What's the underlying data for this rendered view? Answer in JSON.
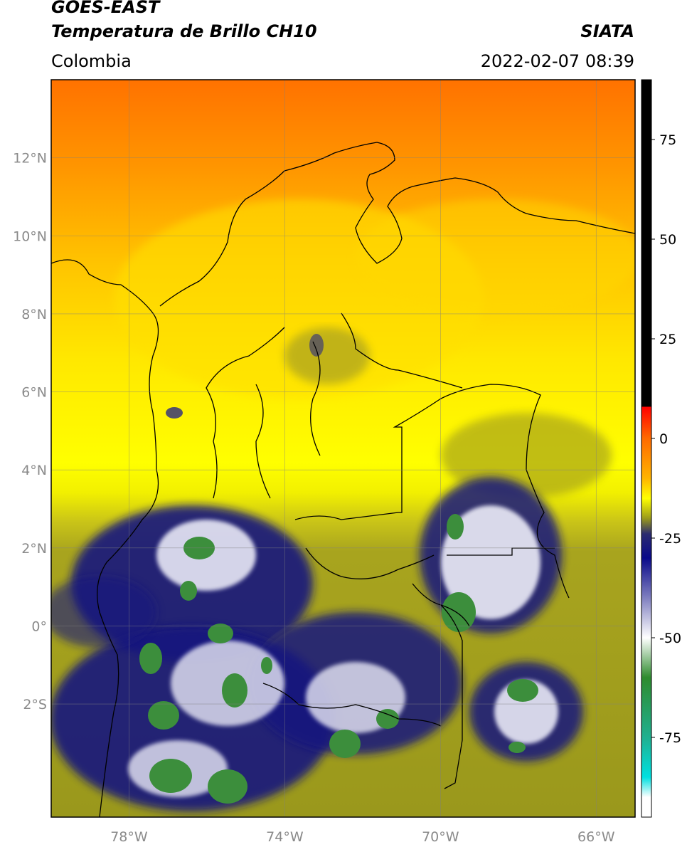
{
  "header": {
    "satellite": "GOES-EAST",
    "product": "Temperatura de Brillo CH10",
    "agency": "SIATA",
    "region": "Colombia",
    "datetime": "2022-02-07 08:39"
  },
  "map": {
    "lon_range": [
      -80,
      -65
    ],
    "lat_range": [
      -4.9,
      14
    ],
    "lat_ticks": [
      {
        "value": 12,
        "label": "12°N"
      },
      {
        "value": 10,
        "label": "10°N"
      },
      {
        "value": 8,
        "label": "8°N"
      },
      {
        "value": 6,
        "label": "6°N"
      },
      {
        "value": 4,
        "label": "4°N"
      },
      {
        "value": 2,
        "label": "2°N"
      },
      {
        "value": 0,
        "label": "0°"
      },
      {
        "value": -2,
        "label": "2°S"
      }
    ],
    "lon_ticks": [
      {
        "value": -78,
        "label": "78°W"
      },
      {
        "value": -74,
        "label": "74°W"
      },
      {
        "value": -70,
        "label": "70°W"
      },
      {
        "value": -66,
        "label": "66°W"
      }
    ],
    "grid": true,
    "colors": {
      "warm_sea": "#ff7a00",
      "land_warm": "#ffd200",
      "yellow": "#ffff00",
      "olive": "#9a9a1e",
      "deep_blue": "#15157a",
      "white": "#ffffff",
      "green": "#3a8c3a"
    }
  },
  "colorbar": {
    "range": [
      -95,
      90
    ],
    "ticks": [
      {
        "value": 75,
        "label": "75"
      },
      {
        "value": 50,
        "label": "50"
      },
      {
        "value": 25,
        "label": "25"
      },
      {
        "value": 0,
        "label": "0"
      },
      {
        "value": -25,
        "label": "-25"
      },
      {
        "value": -50,
        "label": "-50"
      },
      {
        "value": -75,
        "label": "-75"
      }
    ],
    "stops": [
      {
        "value": 90,
        "color": "#000000"
      },
      {
        "value": 8,
        "color": "#000000"
      },
      {
        "value": 7.9,
        "color": "#ff0000"
      },
      {
        "value": 0,
        "color": "#ff6a00"
      },
      {
        "value": -10,
        "color": "#ffb400"
      },
      {
        "value": -15,
        "color": "#ffff00"
      },
      {
        "value": -20,
        "color": "#9b9b1a"
      },
      {
        "value": -24,
        "color": "#2a2a70"
      },
      {
        "value": -30,
        "color": "#0a0a8a"
      },
      {
        "value": -40,
        "color": "#8080c0"
      },
      {
        "value": -50,
        "color": "#ffffff"
      },
      {
        "value": -60,
        "color": "#2e8b2e"
      },
      {
        "value": -75,
        "color": "#20b090"
      },
      {
        "value": -85,
        "color": "#00e0e0"
      },
      {
        "value": -90,
        "color": "#ffffff"
      },
      {
        "value": -95,
        "color": "#ffffff"
      }
    ]
  }
}
